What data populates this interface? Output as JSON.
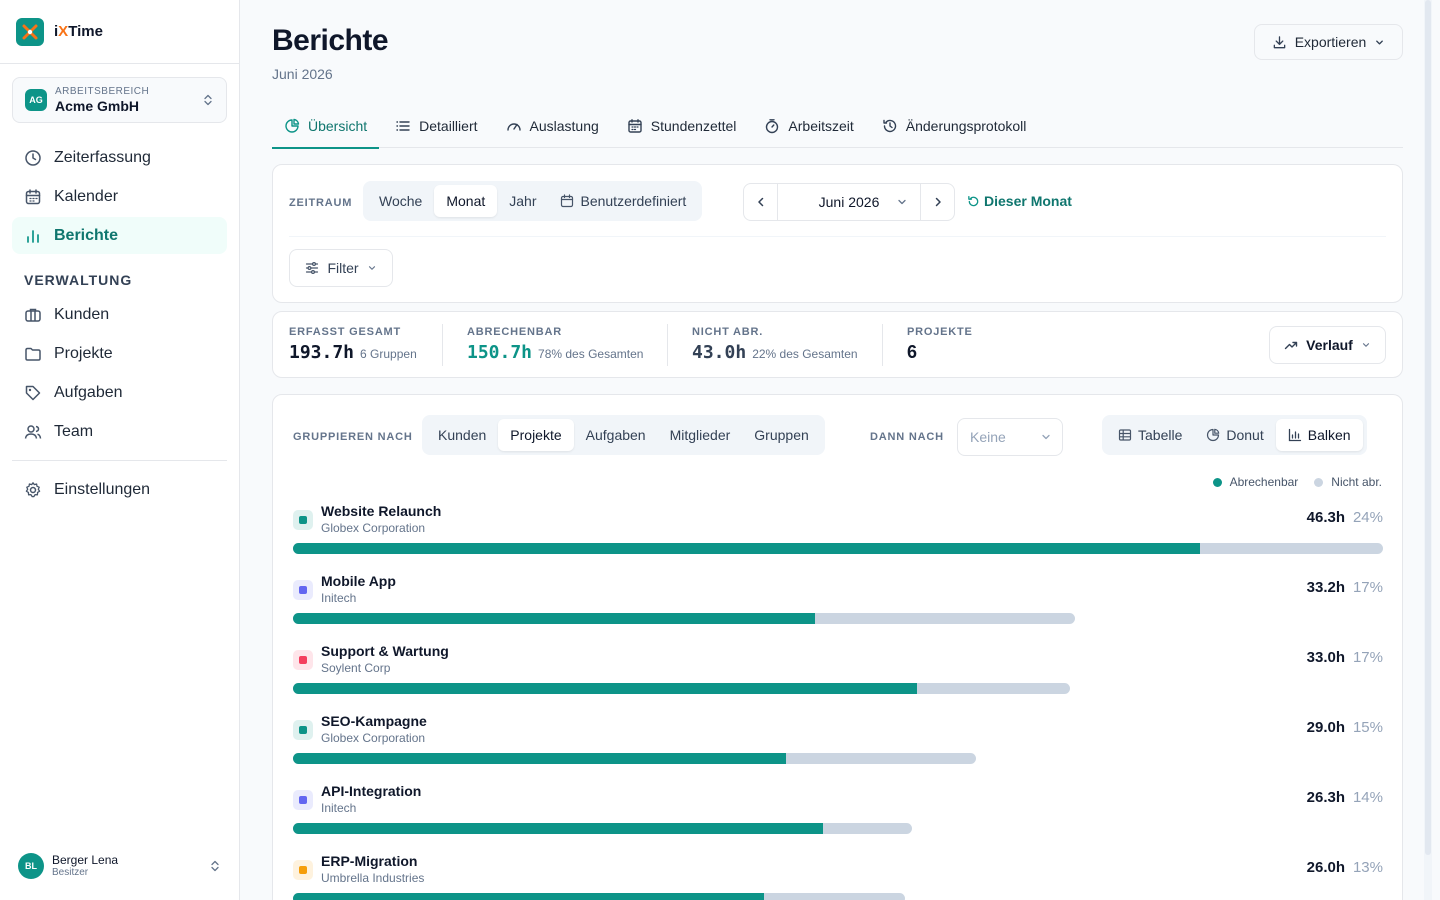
{
  "app": {
    "name_prefix": "i",
    "name_x": "X",
    "name_suffix": "Time"
  },
  "workspace": {
    "label": "ARBEITSBEREICH",
    "name": "Acme GmbH",
    "initials": "AG"
  },
  "nav": {
    "items": [
      {
        "label": "Zeiterfassung",
        "icon": "clock-icon"
      },
      {
        "label": "Kalender",
        "icon": "calendar-icon"
      },
      {
        "label": "Berichte",
        "icon": "bar-chart-icon"
      }
    ],
    "section_label": "VERWALTUNG",
    "admin_items": [
      {
        "label": "Kunden",
        "icon": "briefcase-icon"
      },
      {
        "label": "Projekte",
        "icon": "folder-icon"
      },
      {
        "label": "Aufgaben",
        "icon": "tag-icon"
      },
      {
        "label": "Team",
        "icon": "users-icon"
      }
    ],
    "settings_label": "Einstellungen"
  },
  "user": {
    "name": "Berger Lena",
    "role": "Besitzer",
    "initials": "BL"
  },
  "page": {
    "title": "Berichte",
    "subtitle": "Juni 2026",
    "export_label": "Exportieren"
  },
  "tabs": [
    {
      "label": "Übersicht",
      "icon": "pie-icon",
      "active": true
    },
    {
      "label": "Detailliert",
      "icon": "list-icon"
    },
    {
      "label": "Auslastung",
      "icon": "gauge-icon"
    },
    {
      "label": "Stundenzettel",
      "icon": "calendar-icon"
    },
    {
      "label": "Arbeitszeit",
      "icon": "stopwatch-icon"
    },
    {
      "label": "Änderungsprotokoll",
      "icon": "history-icon"
    }
  ],
  "filters": {
    "period_label": "ZEITRAUM",
    "periods": [
      "Woche",
      "Monat",
      "Jahr",
      "Benutzerdefiniert"
    ],
    "selected_period": "Monat",
    "current_month": "Juni 2026",
    "this_month_label": "Dieser Monat",
    "filter_label": "Filter"
  },
  "stats": {
    "total": {
      "label": "ERFASST GESAMT",
      "value": "193.7h",
      "note": "6 Gruppen"
    },
    "billable": {
      "label": "ABRECHENBAR",
      "value": "150.7h",
      "note": "78% des Gesamten"
    },
    "non_billable": {
      "label": "NICHT ABR.",
      "value": "43.0h",
      "note": "22% des Gesamten"
    },
    "projects": {
      "label": "PROJEKTE",
      "value": "6"
    },
    "trend_label": "Verlauf"
  },
  "grouping": {
    "group_by_label": "GRUPPIEREN NACH",
    "options": [
      "Kunden",
      "Projekte",
      "Aufgaben",
      "Mitglieder",
      "Gruppen"
    ],
    "selected": "Projekte",
    "then_by_label": "DANN NACH",
    "then_by_value": "Keine",
    "views": [
      "Tabelle",
      "Donut",
      "Balken"
    ],
    "selected_view": "Balken"
  },
  "legend": {
    "billable": "Abrechenbar",
    "non_billable": "Nicht abr."
  },
  "colors": {
    "accent": "#0d9488",
    "non_billable": "#cbd5e1"
  },
  "chart_data": {
    "type": "bar",
    "max_hours": 46.3,
    "rows": [
      {
        "name": "Website Relaunch",
        "client": "Globex Corporation",
        "hours": "46.3h",
        "total": 46.3,
        "billable_ratio": 0.832,
        "pct": "24%",
        "color": "#0d9488"
      },
      {
        "name": "Mobile App",
        "client": "Initech",
        "hours": "33.2h",
        "total": 33.2,
        "billable_ratio": 0.668,
        "pct": "17%",
        "color": "#6366f1"
      },
      {
        "name": "Support & Wartung",
        "client": "Soylent Corp",
        "hours": "33.0h",
        "total": 33.0,
        "billable_ratio": 0.803,
        "pct": "17%",
        "color": "#f43f5e"
      },
      {
        "name": "SEO-Kampagne",
        "client": "Globex Corporation",
        "hours": "29.0h",
        "total": 29.0,
        "billable_ratio": 0.722,
        "pct": "15%",
        "color": "#0d9488"
      },
      {
        "name": "API-Integration",
        "client": "Initech",
        "hours": "26.3h",
        "total": 26.3,
        "billable_ratio": 0.857,
        "pct": "14%",
        "color": "#6366f1"
      },
      {
        "name": "ERP-Migration",
        "client": "Umbrella Industries",
        "hours": "26.0h",
        "total": 26.0,
        "billable_ratio": 0.77,
        "pct": "13%",
        "color": "#f59e0b"
      }
    ]
  }
}
